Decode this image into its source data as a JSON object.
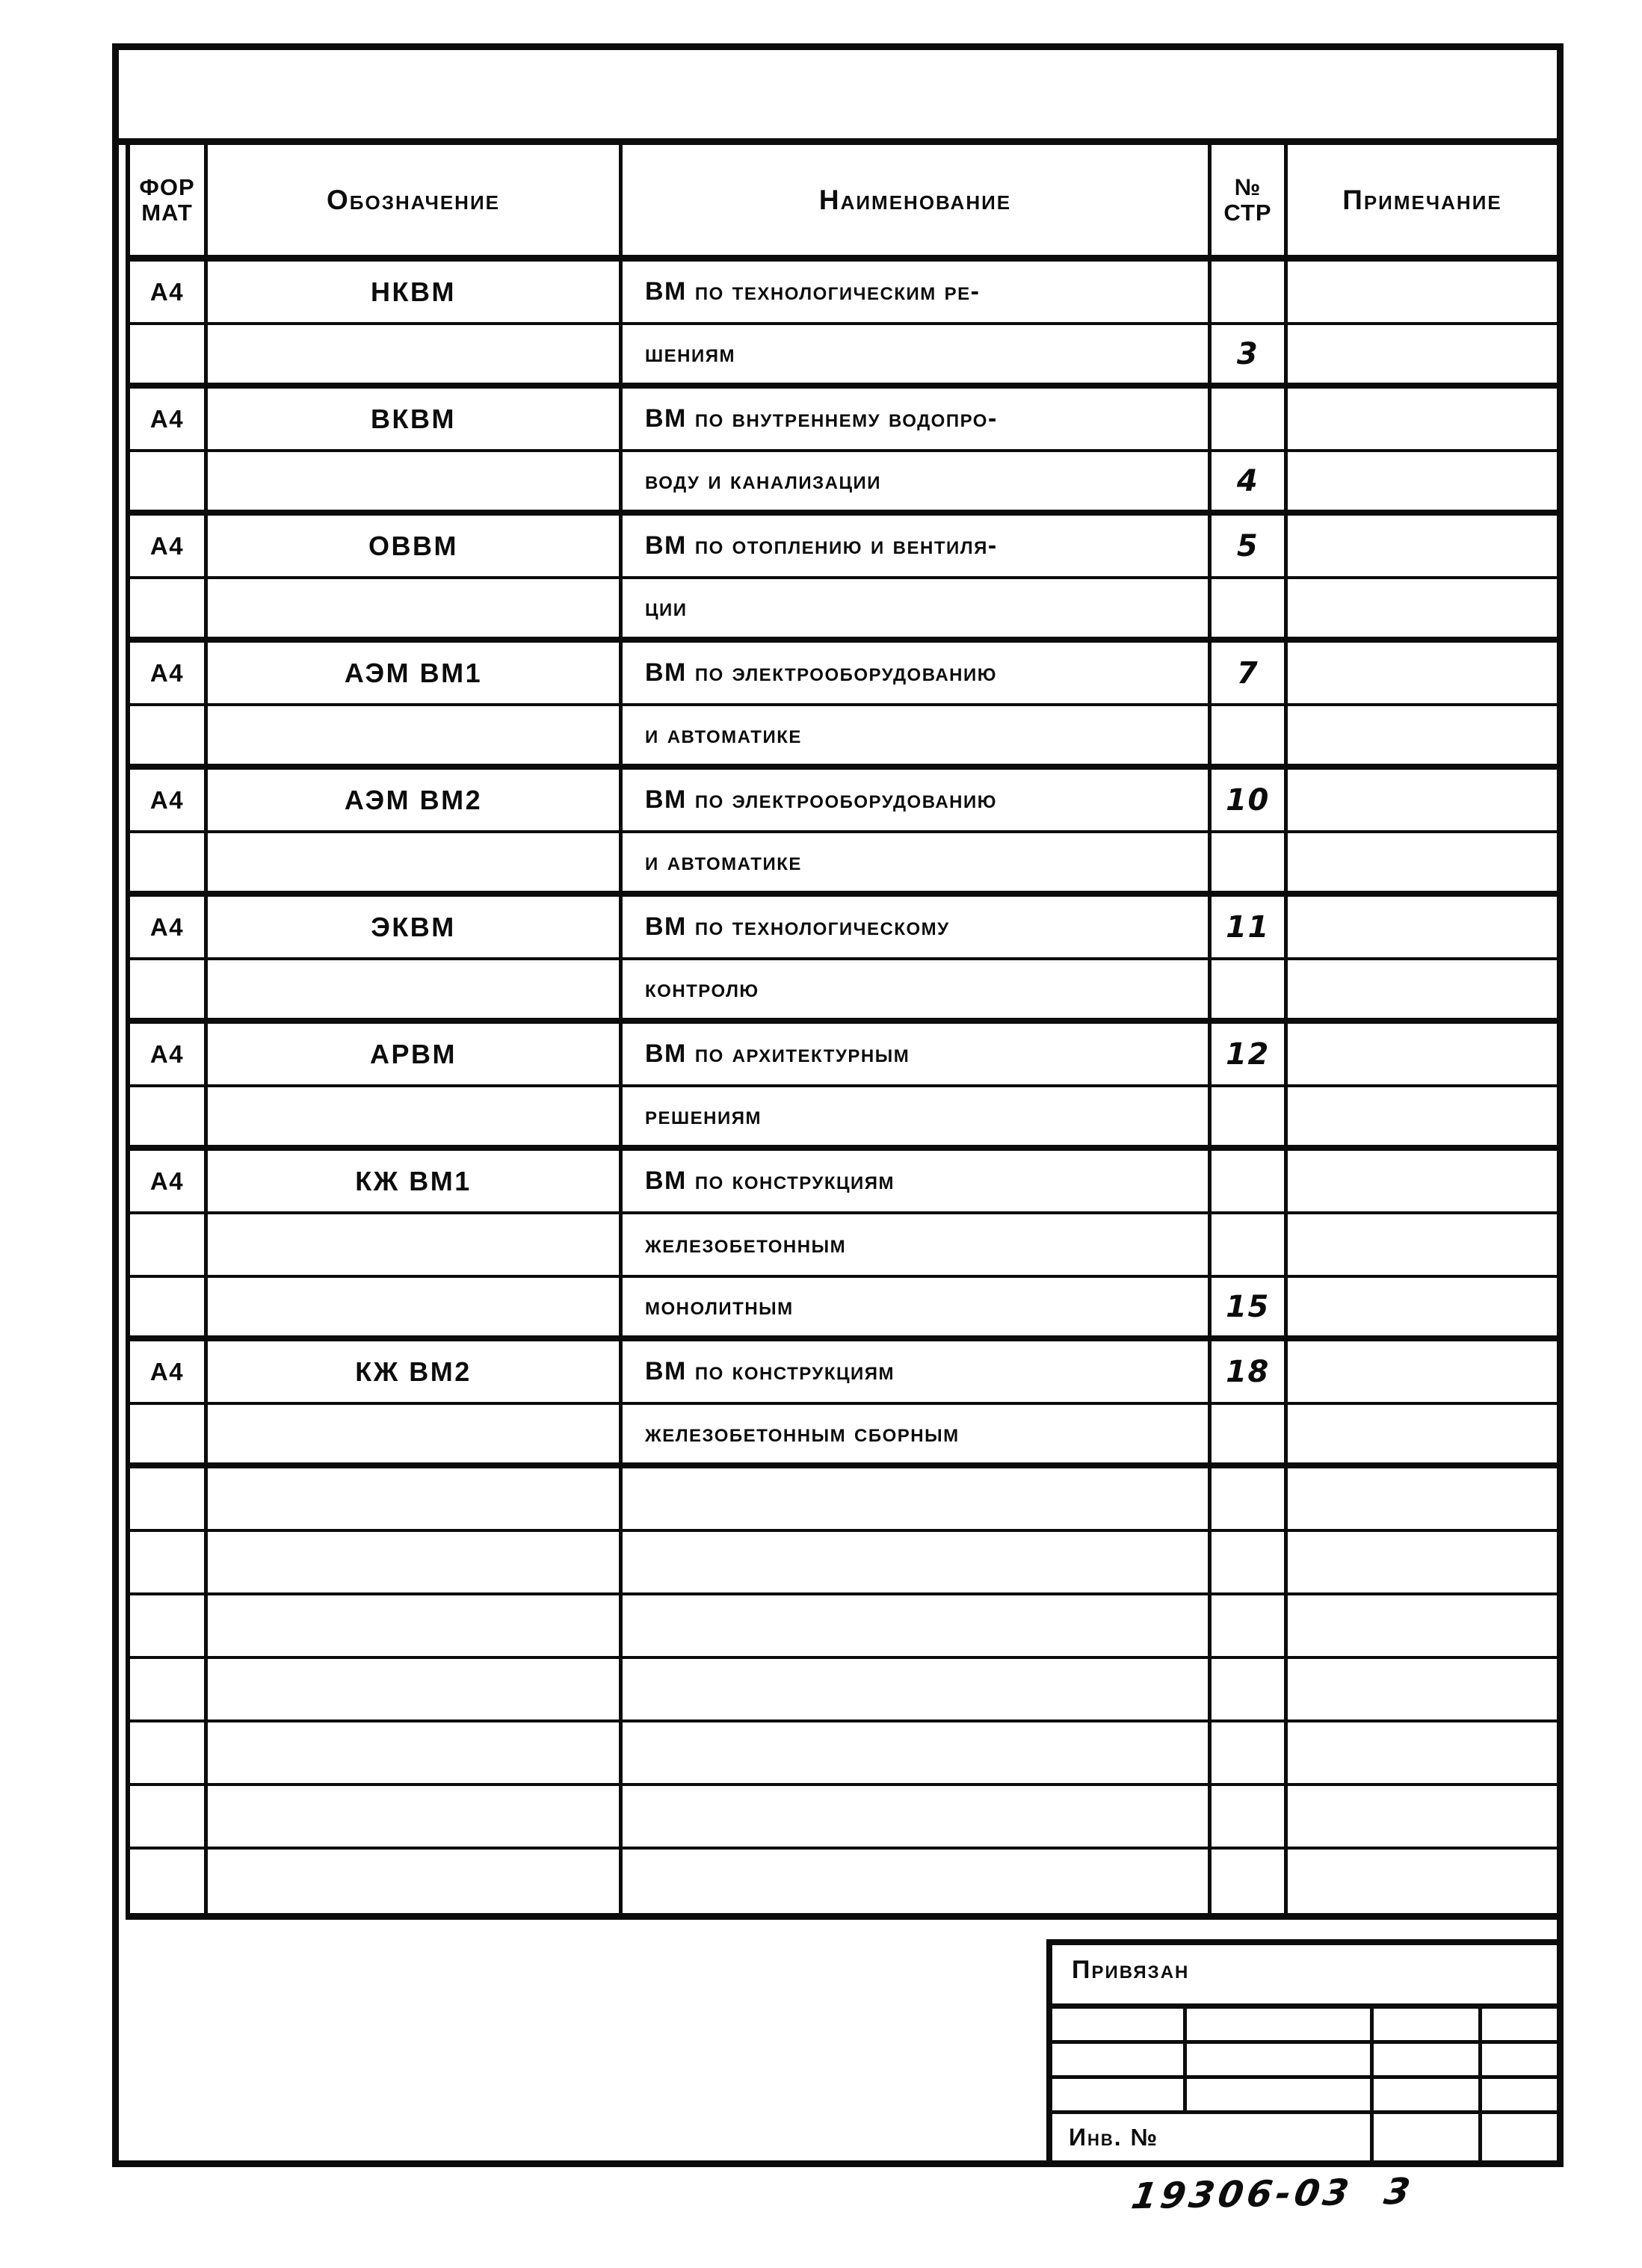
{
  "colors": {
    "ink": "#0c0c0c",
    "paper": "#ffffff"
  },
  "header": {
    "col_format_line1": "ФОР",
    "col_format_line2": "МАТ",
    "col_designation": "Обозначение",
    "col_name": "Наименование",
    "col_page_line1": "№",
    "col_page_line2": "СТР",
    "col_note": "Примечание"
  },
  "table": {
    "rows": [
      {
        "format": "А4",
        "code": "НКВМ",
        "name": "ВМ по технологическим ре-",
        "page": "",
        "sep": "thin"
      },
      {
        "format": "",
        "code": "",
        "name": "шениям",
        "page": "3",
        "sep": "thick"
      },
      {
        "format": "А4",
        "code": "ВКВМ",
        "name": "ВМ по внутреннему водопро-",
        "page": "",
        "sep": "thin"
      },
      {
        "format": "",
        "code": "",
        "name": "воду и канализации",
        "page": "4",
        "sep": "thick"
      },
      {
        "format": "А4",
        "code": "ОВВМ",
        "name": "ВМ по отоплению и вентиля-",
        "page": "5",
        "sep": "thin"
      },
      {
        "format": "",
        "code": "",
        "name": "ции",
        "page": "",
        "sep": "thick"
      },
      {
        "format": "А4",
        "code": "АЭМ ВМ1",
        "name": "ВМ по электрооборудованию",
        "page": "7",
        "sep": "thin"
      },
      {
        "format": "",
        "code": "",
        "name": "и автоматике",
        "page": "",
        "sep": "thick"
      },
      {
        "format": "А4",
        "code": "АЭМ ВМ2",
        "name": "ВМ по электрооборудованию",
        "page": "10",
        "sep": "thin"
      },
      {
        "format": "",
        "code": "",
        "name": "и автоматике",
        "page": "",
        "sep": "thick"
      },
      {
        "format": "А4",
        "code": "ЭКВМ",
        "name": "ВМ по технологическому",
        "page": "11",
        "sep": "thin"
      },
      {
        "format": "",
        "code": "",
        "name": "контролю",
        "page": "",
        "sep": "thick"
      },
      {
        "format": "А4",
        "code": "АРВМ",
        "name": "ВМ по архитектурным",
        "page": "12",
        "sep": "thin"
      },
      {
        "format": "",
        "code": "",
        "name": "решениям",
        "page": "",
        "sep": "thick"
      },
      {
        "format": "А4",
        "code": "КЖ ВМ1",
        "name": "ВМ по конструкциям",
        "page": "",
        "sep": "thin"
      },
      {
        "format": "",
        "code": "",
        "name": "железобетонным",
        "page": "",
        "sep": "thin"
      },
      {
        "format": "",
        "code": "",
        "name": "монолитным",
        "page": "15",
        "sep": "thick"
      },
      {
        "format": "А4",
        "code": "КЖ ВМ2",
        "name": "ВМ по конструкциям",
        "page": "18",
        "sep": "thin"
      },
      {
        "format": "",
        "code": "",
        "name": "железобетонным сборным",
        "page": "",
        "sep": "thick"
      },
      {
        "format": "",
        "code": "",
        "name": "",
        "page": "",
        "sep": "thin"
      },
      {
        "format": "",
        "code": "",
        "name": "",
        "page": "",
        "sep": "thin"
      },
      {
        "format": "",
        "code": "",
        "name": "",
        "page": "",
        "sep": "thin"
      },
      {
        "format": "",
        "code": "",
        "name": "",
        "page": "",
        "sep": "thin"
      },
      {
        "format": "",
        "code": "",
        "name": "",
        "page": "",
        "sep": "thin"
      },
      {
        "format": "",
        "code": "",
        "name": "",
        "page": "",
        "sep": "thin"
      },
      {
        "format": "",
        "code": "",
        "name": "",
        "page": "",
        "sep": "none"
      }
    ]
  },
  "title_block": {
    "attached_label": "Привязан",
    "inventory_label": "Инв. №"
  },
  "handwriting": {
    "doc_number": "19306-03  3"
  }
}
